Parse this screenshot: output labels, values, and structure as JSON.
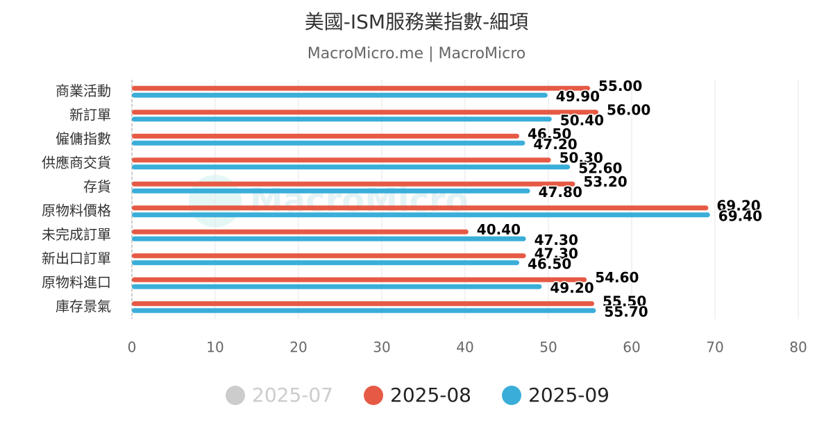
{
  "chart_data": {
    "type": "bar",
    "orientation": "horizontal",
    "title": "美國-ISM服務業指數-細項",
    "subtitle": "MacroMicro.me | MacroMicro",
    "watermark": "MacroMicro",
    "categories": [
      "商業活動",
      "新訂單",
      "僱傭指數",
      "供應商交貨",
      "存貨",
      "原物料價格",
      "未完成訂單",
      "新出口訂單",
      "原物料進口",
      "庫存景氣"
    ],
    "series": [
      {
        "name": "2025-07",
        "color": "#cccccc",
        "visible": false,
        "values": [
          null,
          null,
          null,
          null,
          null,
          null,
          null,
          null,
          null,
          null
        ]
      },
      {
        "name": "2025-08",
        "color": "#e65a45",
        "visible": true,
        "values": [
          55,
          56,
          46.5,
          50.3,
          53.2,
          69.2,
          40.4,
          47.3,
          54.6,
          55.5
        ],
        "value_labels": [
          "55.00",
          "56.00",
          "46.50",
          "50.30",
          "53.20",
          "69.20",
          "40.40",
          "47.30",
          "54.60",
          "55.50"
        ]
      },
      {
        "name": "2025-09",
        "color": "#3aaed8",
        "visible": true,
        "values": [
          49.9,
          50.4,
          47.2,
          52.6,
          47.8,
          69.4,
          47.3,
          46.5,
          49.2,
          55.7
        ],
        "value_labels": [
          "49.90",
          "50.40",
          "47.20",
          "52.60",
          "47.80",
          "69.40",
          "47.30",
          "46.50",
          "49.20",
          "55.70"
        ]
      }
    ],
    "xlim": [
      0,
      80
    ],
    "xticks": [
      0,
      10,
      20,
      30,
      40,
      50,
      60,
      70,
      80
    ],
    "grid": true,
    "legend": "bottom"
  }
}
